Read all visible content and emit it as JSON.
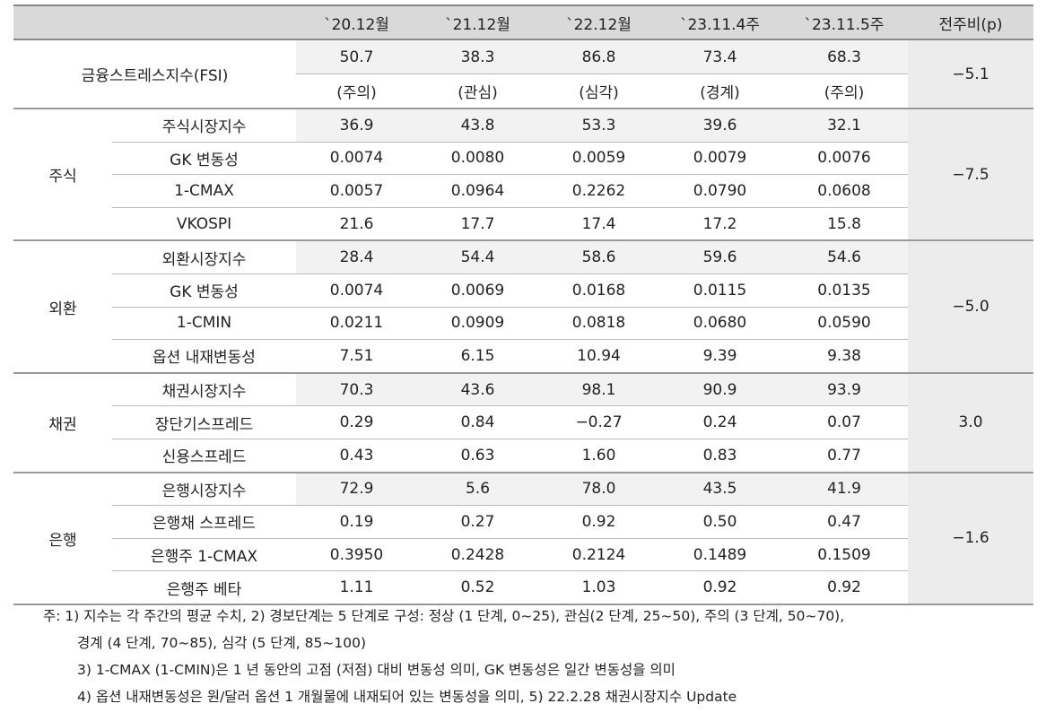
{
  "header": {
    "columns": [
      "`20.12월",
      "`21.12월",
      "`22.12월",
      "`23.11.4주",
      "`23.11.5주",
      "전주비(p)"
    ]
  },
  "fsi": {
    "label": "금융스트레스지수(FSI)",
    "values": [
      "50.7",
      "38.3",
      "86.8",
      "73.4",
      "68.3"
    ],
    "levels": [
      "(주의)",
      "(관심)",
      "(심각)",
      "(경계)",
      "(주의)"
    ],
    "change": "−5.1"
  },
  "groups": [
    {
      "name": "주식",
      "change": "−7.5",
      "rows": [
        {
          "label": "주식시장지수",
          "values": [
            "36.9",
            "43.8",
            "53.3",
            "39.6",
            "32.1"
          ]
        },
        {
          "label": "GK 변동성",
          "values": [
            "0.0074",
            "0.0080",
            "0.0059",
            "0.0079",
            "0.0076"
          ]
        },
        {
          "label": "1-CMAX",
          "values": [
            "0.0057",
            "0.0964",
            "0.2262",
            "0.0790",
            "0.0608"
          ]
        },
        {
          "label": "VKOSPI",
          "values": [
            "21.6",
            "17.7",
            "17.4",
            "17.2",
            "15.8"
          ]
        }
      ]
    },
    {
      "name": "외환",
      "change": "−5.0",
      "rows": [
        {
          "label": "외환시장지수",
          "values": [
            "28.4",
            "54.4",
            "58.6",
            "59.6",
            "54.6"
          ]
        },
        {
          "label": "GK 변동성",
          "values": [
            "0.0074",
            "0.0069",
            "0.0168",
            "0.0115",
            "0.0135"
          ]
        },
        {
          "label": "1-CMIN",
          "values": [
            "0.0211",
            "0.0909",
            "0.0818",
            "0.0680",
            "0.0590"
          ]
        },
        {
          "label": "옵션 내재변동성",
          "values": [
            "7.51",
            "6.15",
            "10.94",
            "9.39",
            "9.38"
          ]
        }
      ]
    },
    {
      "name": "채권",
      "change": "3.0",
      "rows": [
        {
          "label": "채권시장지수",
          "values": [
            "70.3",
            "43.6",
            "98.1",
            "90.9",
            "93.9"
          ]
        },
        {
          "label": "장단기스프레드",
          "values": [
            "0.29",
            "0.84",
            "−0.27",
            "0.24",
            "0.07"
          ]
        },
        {
          "label": "신용스프레드",
          "values": [
            "0.43",
            "0.63",
            "1.60",
            "0.83",
            "0.77"
          ]
        }
      ]
    },
    {
      "name": "은행",
      "change": "−1.6",
      "rows": [
        {
          "label": "은행시장지수",
          "values": [
            "72.9",
            "5.6",
            "78.0",
            "43.5",
            "41.9"
          ]
        },
        {
          "label": "은행채 스프레드",
          "values": [
            "0.19",
            "0.27",
            "0.92",
            "0.50",
            "0.47"
          ]
        },
        {
          "label": "은행주 1-CMAX",
          "values": [
            "0.3950",
            "0.2428",
            "0.2124",
            "0.1489",
            "0.1509"
          ]
        },
        {
          "label": "은행주 베타",
          "values": [
            "1.11",
            "0.52",
            "1.03",
            "0.92",
            "0.92"
          ]
        }
      ]
    }
  ],
  "notes": [
    "주: 1) 지수는 각 주간의 평균 수치, 2) 경보단계는 5 단계로 구성: 정상 (1 단계, 0~25), 관심(2 단계, 25~50), 주의 (3 단계, 50~70),",
    "경계 (4 단계, 70~85), 심각 (5 단계, 85~100)",
    "3) 1-CMAX (1-CMIN)은 1 년 동안의 고점 (저점) 대비 변동성 의미, GK 변동성은 일간 변동성을 의미",
    "4) 옵션 내재변동성은 원/달러 옵션 1 개월물에 내재되어 있는 변동성을 의미, 5) 22.2.28 채권시장지수 Update"
  ]
}
